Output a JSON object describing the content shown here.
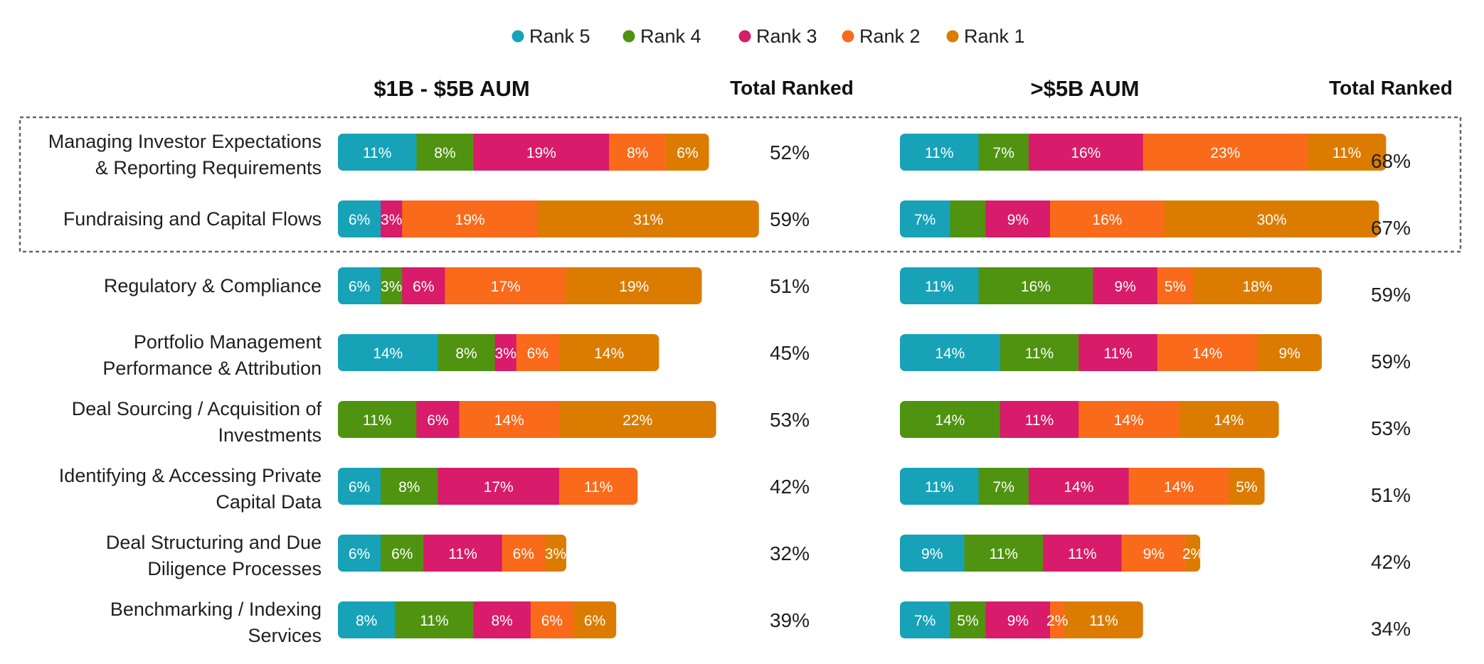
{
  "legend": [
    {
      "key": "rank5",
      "label": "Rank 5",
      "color": "#17a2b8"
    },
    {
      "key": "rank4",
      "label": "Rank 4",
      "color": "#4f9310"
    },
    {
      "key": "rank3",
      "label": "Rank 3",
      "color": "#d81b6a"
    },
    {
      "key": "rank2",
      "label": "Rank 2",
      "color": "#f96a1b"
    },
    {
      "key": "rank1",
      "label": "Rank 1",
      "color": "#db7c00"
    }
  ],
  "headers": {
    "panel_left": "$1B - $5B AUM",
    "total_left": "Total Ranked",
    "panel_right": ">$5B AUM",
    "total_right": "Total Ranked"
  },
  "chart_data": [
    {
      "type": "bar",
      "orientation": "horizontal",
      "stacked": true,
      "title": "$1B - $5B AUM",
      "categories": [
        [
          "Managing Investor Expectations",
          "& Reporting Requirements"
        ],
        [
          "Fundraising and Capital Flows"
        ],
        [
          "Regulatory & Compliance"
        ],
        [
          "Portfolio Management",
          "Performance & Attribution"
        ],
        [
          "Deal Sourcing / Acquisition of",
          "Investments"
        ],
        [
          "Identifying & Accessing Private",
          "Capital Data"
        ],
        [
          "Deal Structuring and Due",
          "Diligence Processes"
        ],
        [
          "Benchmarking / Indexing",
          "Services"
        ]
      ],
      "series": [
        {
          "name": "Rank 5",
          "values": [
            11,
            6,
            6,
            14,
            0,
            6,
            6,
            8
          ],
          "labels": [
            "11%",
            "6%",
            "6%",
            "14%",
            "",
            "6%",
            "6%",
            "8%"
          ]
        },
        {
          "name": "Rank 4",
          "values": [
            8,
            0,
            3,
            8,
            11,
            8,
            6,
            11
          ],
          "labels": [
            "8%",
            "",
            "3%",
            "8%",
            "11%",
            "8%",
            "6%",
            "11%"
          ]
        },
        {
          "name": "Rank 3",
          "values": [
            19,
            3,
            6,
            3,
            6,
            17,
            11,
            8
          ],
          "labels": [
            "19%",
            "3%",
            "6%",
            "3%",
            "6%",
            "17%",
            "11%",
            "8%"
          ]
        },
        {
          "name": "Rank 2",
          "values": [
            8,
            19,
            17,
            6,
            14,
            11,
            6,
            6
          ],
          "labels": [
            "8%",
            "19%",
            "17%",
            "6%",
            "14%",
            "11%",
            "6%",
            "6%"
          ]
        },
        {
          "name": "Rank 1",
          "values": [
            6,
            31,
            19,
            14,
            22,
            0,
            3,
            6
          ],
          "labels": [
            "6%",
            "31%",
            "19%",
            "14%",
            "22%",
            "",
            "3%",
            "6%"
          ]
        }
      ],
      "totals": [
        "52%",
        "59%",
        "51%",
        "45%",
        "53%",
        "42%",
        "32%",
        "39%"
      ],
      "total_label": "Total Ranked"
    },
    {
      "type": "bar",
      "orientation": "horizontal",
      "stacked": true,
      "title": ">$5B AUM",
      "categories": [
        [
          "Managing Investor Expectations",
          "& Reporting Requirements"
        ],
        [
          "Fundraising and Capital Flows"
        ],
        [
          "Regulatory & Compliance"
        ],
        [
          "Portfolio Management",
          "Performance & Attribution"
        ],
        [
          "Deal Sourcing / Acquisition of",
          "Investments"
        ],
        [
          "Identifying & Accessing Private",
          "Capital Data"
        ],
        [
          "Deal Structuring and Due",
          "Diligence Processes"
        ],
        [
          "Benchmarking / Indexing",
          "Services"
        ]
      ],
      "series": [
        {
          "name": "Rank 5",
          "values": [
            11,
            7,
            11,
            14,
            0,
            11,
            9,
            7
          ],
          "labels": [
            "11%",
            "7%",
            "11%",
            "14%",
            "",
            "11%",
            "9%",
            "7%"
          ]
        },
        {
          "name": "Rank 4",
          "values": [
            7,
            5,
            16,
            11,
            14,
            7,
            11,
            5
          ],
          "labels": [
            "7%",
            "",
            "16%",
            "11%",
            "14%",
            "7%",
            "11%",
            "5%"
          ]
        },
        {
          "name": "Rank 3",
          "values": [
            16,
            9,
            9,
            11,
            11,
            14,
            11,
            9
          ],
          "labels": [
            "16%",
            "9%",
            "9%",
            "11%",
            "11%",
            "14%",
            "11%",
            "9%"
          ]
        },
        {
          "name": "Rank 2",
          "values": [
            23,
            16,
            5,
            14,
            14,
            14,
            9,
            2
          ],
          "labels": [
            "23%",
            "16%",
            "5%",
            "14%",
            "14%",
            "14%",
            "9%",
            "2%"
          ]
        },
        {
          "name": "Rank 1",
          "values": [
            11,
            30,
            18,
            9,
            14,
            5,
            2,
            11
          ],
          "labels": [
            "11%",
            "30%",
            "18%",
            "9%",
            "14%",
            "5%",
            "2%",
            "11%"
          ]
        }
      ],
      "totals": [
        "68%",
        "67%",
        "59%",
        "59%",
        "53%",
        "51%",
        "42%",
        "34%"
      ],
      "total_label": "Total Ranked"
    }
  ]
}
